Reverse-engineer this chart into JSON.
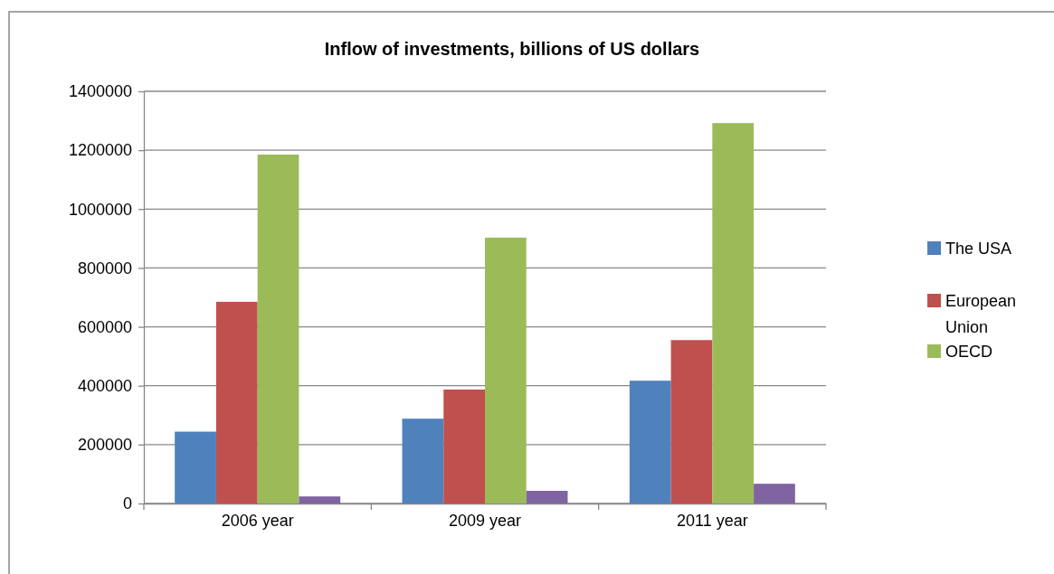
{
  "chart_data": {
    "type": "bar",
    "title": "Inflow of investments, billions of US dollars",
    "categories": [
      "2006 year",
      "2009 year",
      "2011 year"
    ],
    "series": [
      {
        "name": "The USA",
        "color": "#4f81bd",
        "values": [
          244000,
          288000,
          417000
        ]
      },
      {
        "name": "European Union",
        "color": "#c0504d",
        "values": [
          685000,
          387000,
          555000
        ]
      },
      {
        "name": "OECD",
        "color": "#9bbb59",
        "values": [
          1185000,
          903000,
          1292000
        ]
      },
      {
        "color": "#8064a2",
        "values": [
          24000,
          43000,
          67000
        ]
      }
    ],
    "ylim": [
      0,
      1400000
    ],
    "yticks": [
      0,
      200000,
      400000,
      600000,
      800000,
      1000000,
      1200000,
      1400000
    ],
    "grid": "y",
    "legend": "right"
  }
}
